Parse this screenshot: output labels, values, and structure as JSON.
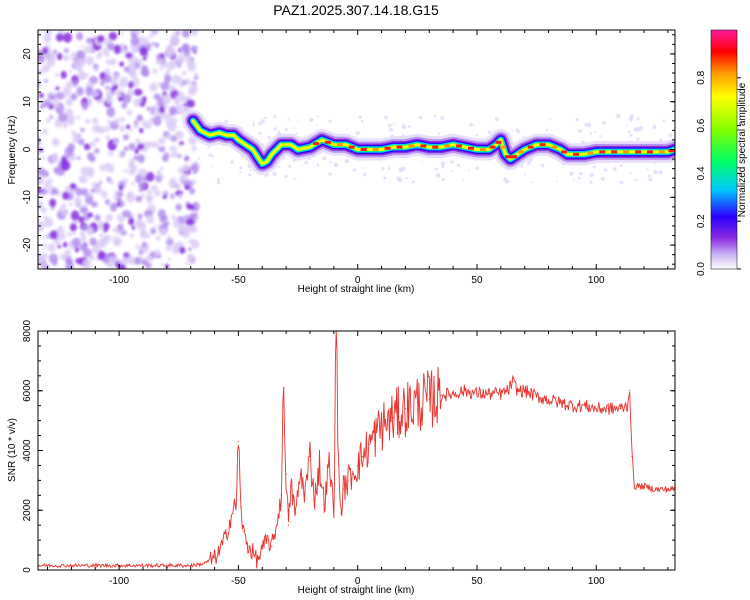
{
  "title": "PAZ1.2025.307.14.18.G15",
  "chart_data": [
    {
      "type": "heatmap",
      "name": "spectrogram",
      "xlabel": "Height of straight line (km)",
      "ylabel": "Frequency (Hz)",
      "xlim": [
        -134,
        133
      ],
      "ylim": [
        -25,
        25
      ],
      "xticks": [
        -100,
        -50,
        0,
        50,
        100
      ],
      "yticks": [
        -20,
        -10,
        0,
        10,
        20
      ],
      "colorbar": {
        "label": "Normalized spectral amplitude",
        "range": [
          0,
          1
        ],
        "ticks": [
          "0.0",
          "0.2",
          "0.4",
          "0.6",
          "0.8"
        ],
        "colors": [
          "#ffffff",
          "#c9b3f5",
          "#8a2be2",
          "#2a00ff",
          "#00c8ff",
          "#00ff66",
          "#7fff00",
          "#ffff00",
          "#ff9900",
          "#ff0000",
          "#ff1aa0"
        ]
      },
      "noise_region_x": [
        -134,
        -70
      ],
      "ridge": [
        [
          -69,
          6
        ],
        [
          -66,
          4
        ],
        [
          -62,
          3
        ],
        [
          -58,
          3.5
        ],
        [
          -55,
          3
        ],
        [
          -52,
          3
        ],
        [
          -50,
          2
        ],
        [
          -47,
          1
        ],
        [
          -44,
          0
        ],
        [
          -42,
          -1.5
        ],
        [
          -40,
          -3
        ],
        [
          -38,
          -2.5
        ],
        [
          -36,
          -1
        ],
        [
          -32,
          1
        ],
        [
          -28,
          1
        ],
        [
          -25,
          0
        ],
        [
          -20,
          0.5
        ],
        [
          -15,
          2
        ],
        [
          -10,
          1
        ],
        [
          -5,
          1
        ],
        [
          0,
          0
        ],
        [
          5,
          0
        ],
        [
          10,
          0
        ],
        [
          15,
          0.5
        ],
        [
          20,
          0.5
        ],
        [
          25,
          1
        ],
        [
          30,
          0.5
        ],
        [
          35,
          0.5
        ],
        [
          40,
          1
        ],
        [
          45,
          0.5
        ],
        [
          50,
          0
        ],
        [
          55,
          0
        ],
        [
          58,
          1
        ],
        [
          60,
          2
        ],
        [
          62,
          -1
        ],
        [
          64,
          -2
        ],
        [
          67,
          -1
        ],
        [
          70,
          0
        ],
        [
          75,
          1
        ],
        [
          80,
          1
        ],
        [
          85,
          0
        ],
        [
          88,
          -1
        ],
        [
          95,
          -1
        ],
        [
          100,
          -0.5
        ],
        [
          105,
          -0.5
        ],
        [
          110,
          -0.5
        ],
        [
          115,
          -0.5
        ],
        [
          120,
          -0.5
        ],
        [
          125,
          -0.5
        ],
        [
          130,
          -0.5
        ],
        [
          133,
          0
        ]
      ]
    },
    {
      "type": "line",
      "name": "snr",
      "xlabel": "Height of straight line (km)",
      "ylabel": "SNR (10 * v/v)",
      "xlim": [
        -134,
        133
      ],
      "ylim": [
        0,
        8000
      ],
      "xticks": [
        -100,
        -50,
        0,
        50,
        100
      ],
      "yticks": [
        0,
        2000,
        4000,
        6000,
        8000
      ],
      "color": "#e8332e",
      "series": [
        {
          "name": "SNR",
          "x": [
            -134,
            -120,
            -100,
            -80,
            -70,
            -65,
            -60,
            -58,
            -55,
            -53,
            -51,
            -50,
            -49,
            -48,
            -46,
            -44,
            -42,
            -40,
            -38,
            -36,
            -34,
            -32,
            -31,
            -30,
            -29,
            -28,
            -26,
            -24,
            -22,
            -20,
            -18,
            -16,
            -14,
            -12,
            -10,
            -9,
            -8,
            -7,
            -6,
            -4,
            -2,
            0,
            2,
            5,
            8,
            10,
            15,
            20,
            25,
            30,
            35,
            40,
            45,
            50,
            55,
            60,
            63,
            65,
            67,
            70,
            75,
            80,
            85,
            90,
            95,
            100,
            105,
            110,
            113,
            114,
            115,
            116,
            120,
            125,
            130,
            133
          ],
          "values": [
            150,
            150,
            150,
            150,
            150,
            200,
            400,
            600,
            1200,
            1800,
            2200,
            4300,
            2100,
            1300,
            800,
            600,
            300,
            700,
            1000,
            800,
            1500,
            2500,
            6100,
            3200,
            1500,
            2800,
            1900,
            3200,
            2600,
            3800,
            2400,
            3500,
            2200,
            3500,
            2100,
            8000,
            3500,
            1900,
            2700,
            3000,
            3300,
            3500,
            3800,
            4200,
            4600,
            4800,
            5100,
            5400,
            5600,
            5700,
            5850,
            5900,
            6000,
            5900,
            5900,
            5900,
            6000,
            6300,
            6000,
            6000,
            5800,
            5700,
            5600,
            5500,
            5500,
            5400,
            5400,
            5400,
            5500,
            6000,
            3800,
            2800,
            2800,
            2700,
            2700,
            2700
          ]
        }
      ]
    }
  ]
}
